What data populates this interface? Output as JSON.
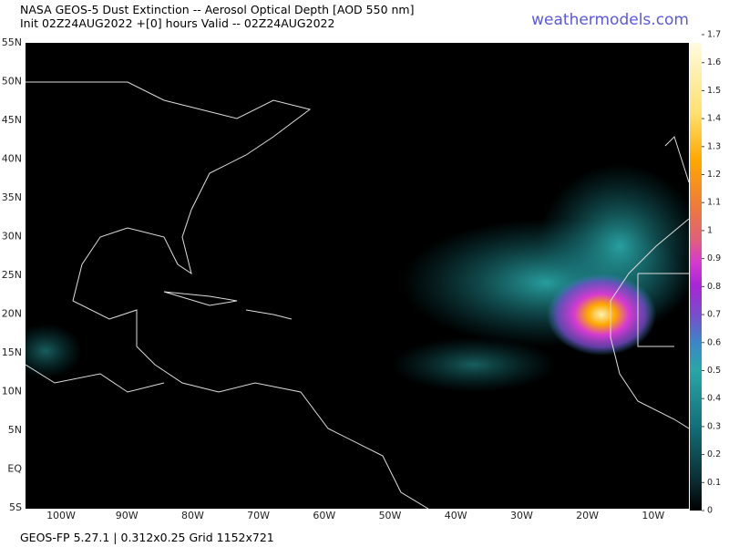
{
  "header": {
    "title": "NASA GEOS-5 Dust Extinction -- Aerosol Optical Depth [AOD 550 nm]",
    "subtitle": "Init 02Z24AUG2022 +[0] hours Valid -- 02Z24AUG2022",
    "watermark": "weathermodels.com"
  },
  "map": {
    "lat_labels": [
      "55N",
      "50N",
      "45N",
      "40N",
      "35N",
      "30N",
      "25N",
      "20N",
      "15N",
      "10N",
      "5N",
      "EQ",
      "5S"
    ],
    "lon_labels": [
      "100W",
      "90W",
      "80W",
      "70W",
      "60W",
      "50W",
      "40W",
      "30W",
      "20W",
      "10W"
    ]
  },
  "colorbar": {
    "range": [
      0,
      1.7
    ],
    "ticks": [
      0,
      0.1,
      0.2,
      0.3,
      0.4,
      0.5,
      0.6,
      0.7,
      0.8,
      0.9,
      1,
      1.1,
      1.2,
      1.3,
      1.4,
      1.5,
      1.6,
      1.7
    ]
  },
  "footer": "GEOS-FP 5.27.1 | 0.312x0.25 Grid 1152x721"
}
